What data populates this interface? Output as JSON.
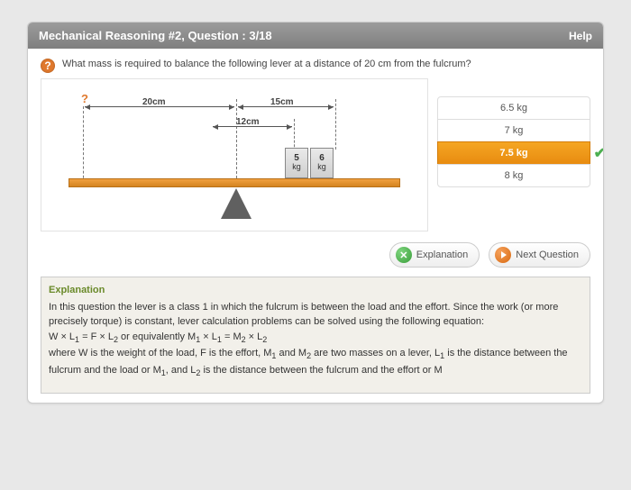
{
  "header": {
    "title": "Mechanical Reasoning #2, Question : 3/18",
    "help": "Help"
  },
  "question": {
    "icon": "?",
    "text": "What mass is required to balance the following lever at a distance of 20 cm from the fulcrum?"
  },
  "diagram": {
    "unknown_marker": "?",
    "dim1_label": "20cm",
    "dim2_label": "15cm",
    "dim3_label": "12cm",
    "weight1_value": "5",
    "weight1_unit": "kg",
    "weight2_value": "6",
    "weight2_unit": "kg",
    "colors": {
      "lever_fill_top": "#f0a040",
      "lever_fill_bottom": "#d48420",
      "lever_border": "#b87018",
      "fulcrum": "#606060",
      "weight_border": "#888888",
      "dash": "#777777"
    }
  },
  "answers": {
    "options": [
      "6.5 kg",
      "7 kg",
      "7.5 kg",
      "8 kg"
    ],
    "selected_index": 2,
    "correct": true
  },
  "buttons": {
    "explanation": "Explanation",
    "next": "Next Question"
  },
  "explanation": {
    "heading": "Explanation",
    "body_html": "In this question the lever is a class 1 in which the fulcrum is between the load and the effort. Since the work (or more precisely torque) is constant, lever calculation problems can be solved using the following equation:<br>W × L<sub>1</sub> = F × L<sub>2</sub> or equivalently M<sub>1</sub> × L<sub>1</sub> = M<sub>2</sub> × L<sub>2</sub><br>where W is the weight of the load, F is the effort, M<sub>1</sub> and M<sub>2</sub> are two masses on a lever, L<sub>1</sub> is the distance between the fulcrum and the load or M<sub>1</sub>, and L<sub>2</sub> is the distance between the fulcrum and the effort or M"
  },
  "colors": {
    "accent_orange": "#e88b10",
    "header_grad_top": "#9c9c9c",
    "header_grad_bottom": "#7f7f7f",
    "correct_green": "#4caf50",
    "explain_heading": "#6a8a2a",
    "panel_bg": "#ffffff",
    "page_bg": "#e8e8e8"
  }
}
